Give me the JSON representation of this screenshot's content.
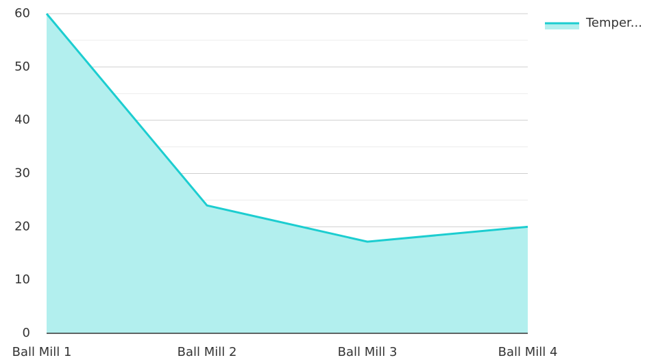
{
  "chart_data": {
    "type": "area",
    "categories": [
      "Ball Mill 1",
      "Ball Mill 2",
      "Ball Mill 3",
      "Ball Mill 4"
    ],
    "series": [
      {
        "name": "Temper...",
        "color": "#1ccdd0",
        "fill": "#b2efee",
        "values": [
          60,
          24,
          17.2,
          20
        ]
      }
    ],
    "ylim": [
      0,
      60
    ],
    "yticks": [
      0,
      10,
      20,
      30,
      40,
      50,
      60
    ],
    "grid": true,
    "minor_grid": true,
    "legend": "top-right"
  }
}
